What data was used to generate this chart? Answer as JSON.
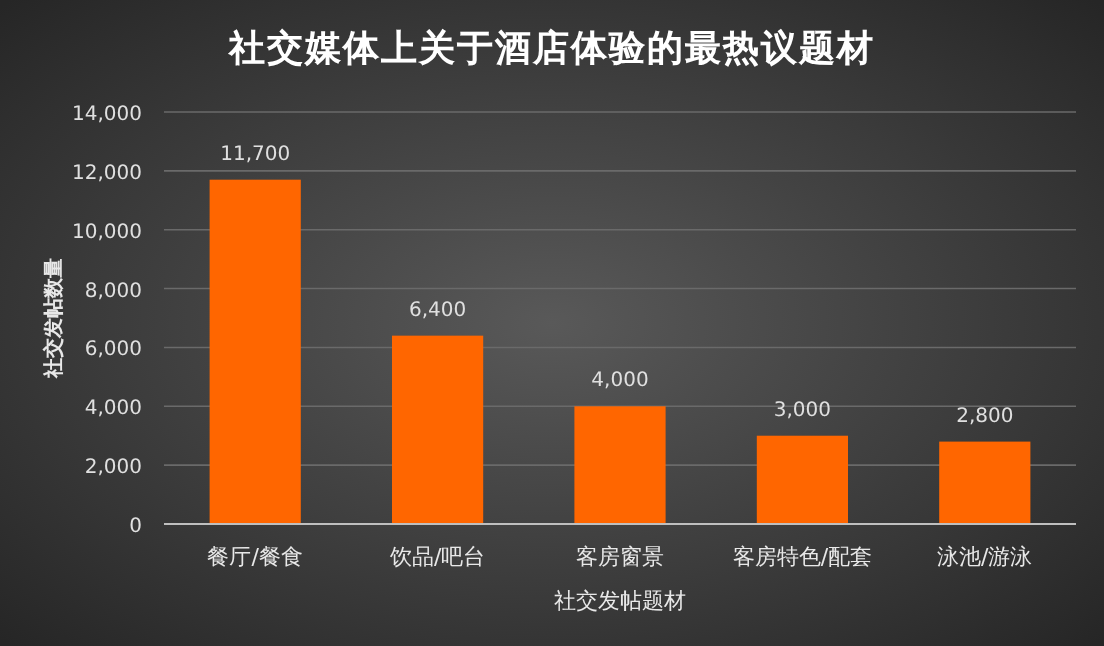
{
  "chart_data": {
    "type": "bar",
    "title": "社交媒体上关于酒店体验的最热议题材",
    "xlabel": "社交发帖题材",
    "ylabel": "社交发帖数量",
    "categories": [
      "餐厅/餐食",
      "饮品/吧台",
      "客房窗景",
      "客房特色/配套",
      "泳池/游泳"
    ],
    "values": [
      11700,
      6400,
      4000,
      3000,
      2800
    ],
    "value_labels": [
      "11,700",
      "6,400",
      "4,000",
      "3,000",
      "2,800"
    ],
    "color": "#ff6600",
    "ylim": [
      0,
      14000
    ],
    "yticks": [
      0,
      {
        "value": 2000,
        "label": "2,000"
      },
      {
        "value": 4000,
        "label": "4,000"
      },
      {
        "value": 6000,
        "label": "6,000"
      },
      {
        "value": 8000,
        "label": "8,000"
      },
      {
        "value": 10000,
        "label": "10,000"
      },
      {
        "value": 12000,
        "label": "12,000"
      },
      {
        "value": 14000,
        "label": "14,000"
      }
    ],
    "grid": "y"
  }
}
